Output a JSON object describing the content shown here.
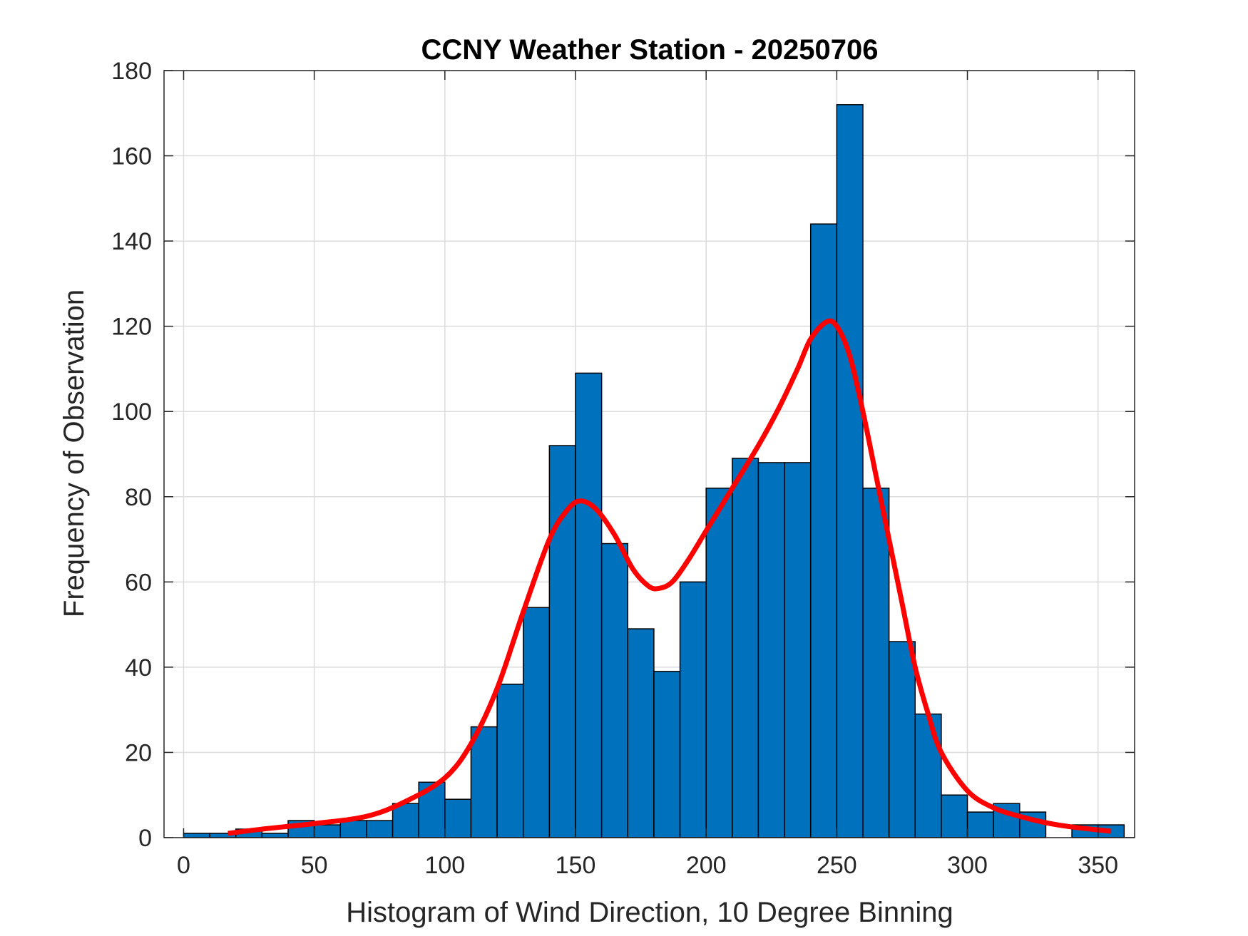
{
  "chart_data": {
    "type": "bar",
    "title": "CCNY Weather Station - 20250706",
    "xlabel": "Histogram of Wind Direction, 10 Degree Binning",
    "ylabel": "Frequency of Observation",
    "xlim": [
      -7.5,
      364
    ],
    "ylim": [
      0,
      180
    ],
    "grid": true,
    "xticks": [
      0,
      50,
      100,
      150,
      200,
      250,
      300,
      350
    ],
    "yticks": [
      0,
      20,
      40,
      60,
      80,
      100,
      120,
      140,
      160,
      180
    ],
    "bin_width": 10,
    "bin_edges_start": [
      0,
      10,
      20,
      30,
      40,
      50,
      60,
      70,
      80,
      90,
      100,
      110,
      120,
      130,
      140,
      150,
      160,
      170,
      180,
      190,
      200,
      210,
      220,
      230,
      240,
      250,
      260,
      270,
      280,
      290,
      300,
      310,
      320,
      330,
      340,
      350
    ],
    "values": [
      1,
      1,
      2,
      1,
      4,
      3,
      4,
      4,
      8,
      13,
      9,
      26,
      36,
      54,
      92,
      109,
      69,
      49,
      39,
      60,
      82,
      89,
      88,
      88,
      144,
      172,
      82,
      46,
      29,
      10,
      6,
      8,
      6,
      0,
      3,
      3
    ],
    "bar_color": "#0072BD",
    "fit_curve": {
      "color": "#FF0000",
      "x": [
        17,
        30,
        50,
        70,
        85,
        100,
        110,
        120,
        130,
        140,
        147,
        152,
        158,
        165,
        172,
        178,
        182,
        187,
        193,
        200,
        210,
        220,
        228,
        235,
        240,
        246,
        250,
        255,
        260,
        265,
        270,
        275,
        280,
        285,
        290,
        300,
        310,
        320,
        330,
        340,
        355
      ],
      "y": [
        1,
        2,
        3.3,
        5,
        8.5,
        14,
        22,
        35,
        53,
        70,
        77,
        79,
        77,
        71,
        63,
        59,
        58.5,
        60,
        65,
        72,
        82,
        92,
        101,
        110,
        117,
        121,
        120,
        113,
        100,
        85,
        70,
        55,
        40,
        29,
        20,
        11,
        7,
        5,
        3.5,
        2.5,
        1.5
      ]
    }
  }
}
